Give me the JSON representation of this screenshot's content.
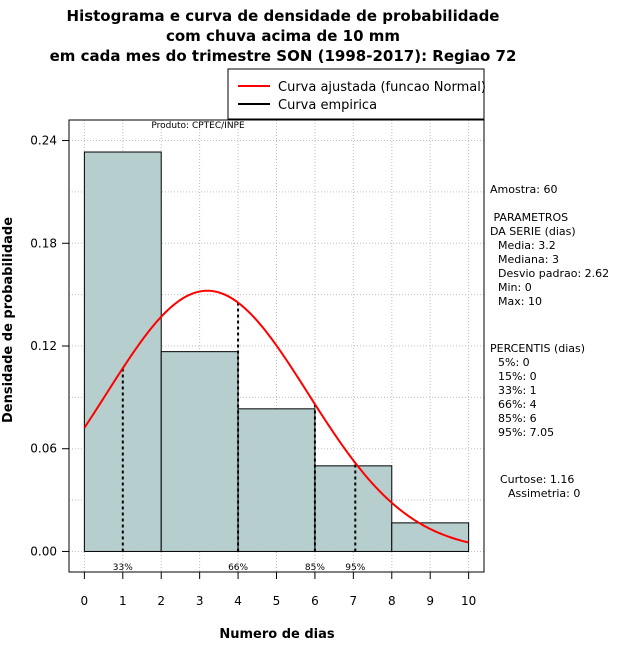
{
  "chart_data": {
    "type": "bar",
    "title_lines": [
      "Histograma e curva de densidade de probabilidade",
      "com chuva acima de 10 mm",
      "em cada mes do trimestre SON (1998-2017): Regiao 72"
    ],
    "xlabel": "Numero de dias",
    "ylabel": "Densidade de probabilidade",
    "xlim": [
      -0.4,
      10.4
    ],
    "ylim": [
      -0.012,
      0.252
    ],
    "x_ticks": [
      0,
      1,
      2,
      3,
      4,
      5,
      6,
      7,
      8,
      9,
      10
    ],
    "x_tick_labels": [
      "0",
      "1",
      "2",
      "3",
      "4",
      "5",
      "6",
      "7",
      "8",
      "9",
      "10"
    ],
    "y_ticks": [
      0.0,
      0.06,
      0.12,
      0.18,
      0.24
    ],
    "y_tick_labels": [
      "0.00",
      "0.06",
      "0.12",
      "0.18",
      "0.24"
    ],
    "bins": [
      {
        "from": 0,
        "to": 2,
        "density": 0.2333
      },
      {
        "from": 2,
        "to": 4,
        "density": 0.1167
      },
      {
        "from": 4,
        "to": 6,
        "density": 0.0833
      },
      {
        "from": 6,
        "to": 8,
        "density": 0.05
      },
      {
        "from": 8,
        "to": 10,
        "density": 0.0167
      }
    ],
    "normal_curve": {
      "name": "Curva ajustada (funcao Normal)",
      "mean": 3.2,
      "sd": 2.62,
      "color": "#ff0000"
    },
    "percentile_markers": [
      {
        "label": "33%",
        "x": 1
      },
      {
        "label": "66%",
        "x": 4
      },
      {
        "label": "85%",
        "x": 6
      },
      {
        "label": "95%",
        "x": 7.05
      }
    ],
    "legend": [
      {
        "label": "Curva ajustada (funcao Normal)",
        "color": "#ff0000"
      },
      {
        "label": "Curva empirica",
        "color": "#000000"
      }
    ],
    "legend_position": "top-right",
    "product_label": "Produto: CPTEC/INPE",
    "bar_color": "#b7cece",
    "grid": true
  },
  "side_panel": {
    "sample": "Amostra: 60",
    "params_title": " PARAMETROS",
    "params_subtitle": "DA SERIE (dias)",
    "params": [
      "Media: 3.2",
      "Mediana: 3",
      "Desvio padrao: 2.62",
      "Min: 0",
      "Max: 10"
    ],
    "percentis_title": "PERCENTIS (dias)",
    "percentis": [
      "5%: 0",
      "15%: 0",
      "33%: 1",
      "66%: 4",
      "85%: 6",
      "95%: 7.05"
    ],
    "curtose": "Curtose: 1.16",
    "assimetria": "Assimetria: 0"
  }
}
